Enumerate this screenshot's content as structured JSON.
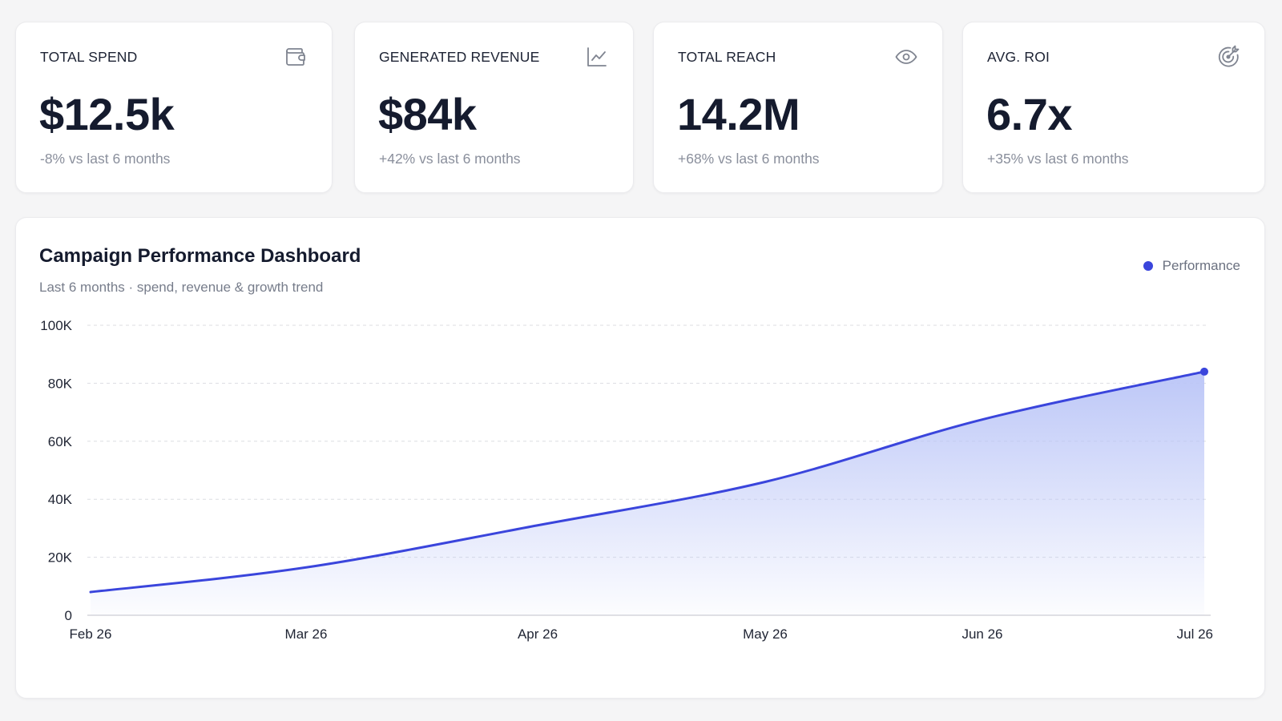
{
  "kpis": [
    {
      "label": "TOTAL SPEND",
      "value": "$12.5k",
      "delta": "-8% vs last 6 months",
      "icon": "wallet-icon"
    },
    {
      "label": "GENERATED REVENUE",
      "value": "$84k",
      "delta": "+42% vs last 6 months",
      "icon": "line-chart-icon"
    },
    {
      "label": "TOTAL REACH",
      "value": "14.2M",
      "delta": "+68% vs last 6 months",
      "icon": "eye-icon"
    },
    {
      "label": "AVG. ROI",
      "value": "6.7x",
      "delta": "+35% vs last 6 months",
      "icon": "target-icon"
    }
  ],
  "colors": {
    "accent": "#3a45dc",
    "area_top": "#b9c4f7",
    "grid": "#dcdde2",
    "axis": "#d5d6db"
  },
  "chart_data": {
    "type": "area",
    "title": "Campaign Performance Dashboard",
    "subtitle": "Last 6 months · spend, revenue & growth trend",
    "legend": {
      "label": "Performance",
      "position": "top-right"
    },
    "xlabel": "",
    "ylabel": "",
    "x_ticks": [
      "Feb 26",
      "Mar 26",
      "Apr 26",
      "May 26",
      "Jun 26",
      "Jul 26"
    ],
    "y_ticks": [
      "0",
      "20K",
      "40K",
      "60K",
      "80K",
      "100K"
    ],
    "ylim": [
      0,
      100000
    ],
    "grid": true,
    "series": [
      {
        "name": "Performance",
        "x": [
          "Feb 26",
          "Mar 26",
          "Apr 26",
          "May 26",
          "Jun 26",
          "Jul 26"
        ],
        "values": [
          8000,
          16500,
          31000,
          46000,
          67500,
          84000
        ]
      }
    ]
  }
}
